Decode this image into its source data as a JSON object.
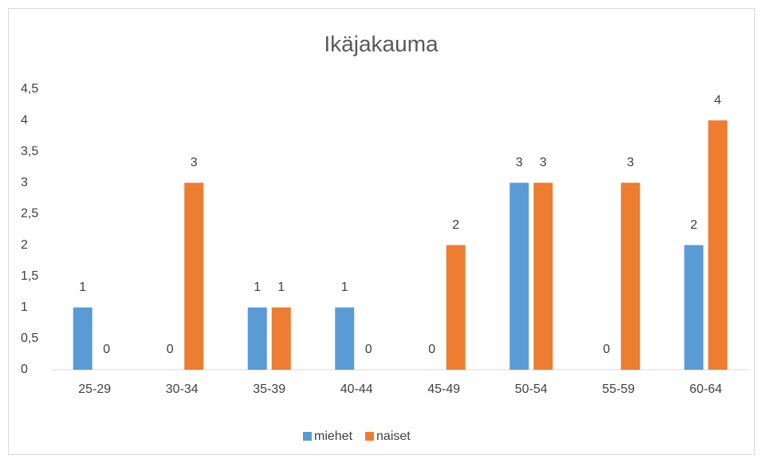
{
  "chart_data": {
    "type": "bar",
    "title": "Ikäjakauma",
    "categories": [
      "25-29",
      "30-34",
      "35-39",
      "40-44",
      "45-49",
      "50-54",
      "55-59",
      "60-64"
    ],
    "series": [
      {
        "name": "miehet",
        "color": "#5b9bd5",
        "values": [
          1,
          0,
          1,
          1,
          0,
          3,
          0,
          2
        ]
      },
      {
        "name": "naiset",
        "color": "#ed7d31",
        "values": [
          0,
          3,
          1,
          0,
          2,
          3,
          3,
          4
        ]
      }
    ],
    "ylim": [
      0,
      4.5
    ],
    "yticks": [
      0,
      {
        "value": 0.5,
        "label": "0,5"
      },
      1,
      {
        "value": 1.5,
        "label": "1,5"
      },
      2,
      {
        "value": 2.5,
        "label": "2,5"
      },
      3,
      {
        "value": 3.5,
        "label": "3,5"
      },
      4,
      {
        "value": 4.5,
        "label": "4,5"
      }
    ],
    "grid": false,
    "legend": "bottom"
  }
}
